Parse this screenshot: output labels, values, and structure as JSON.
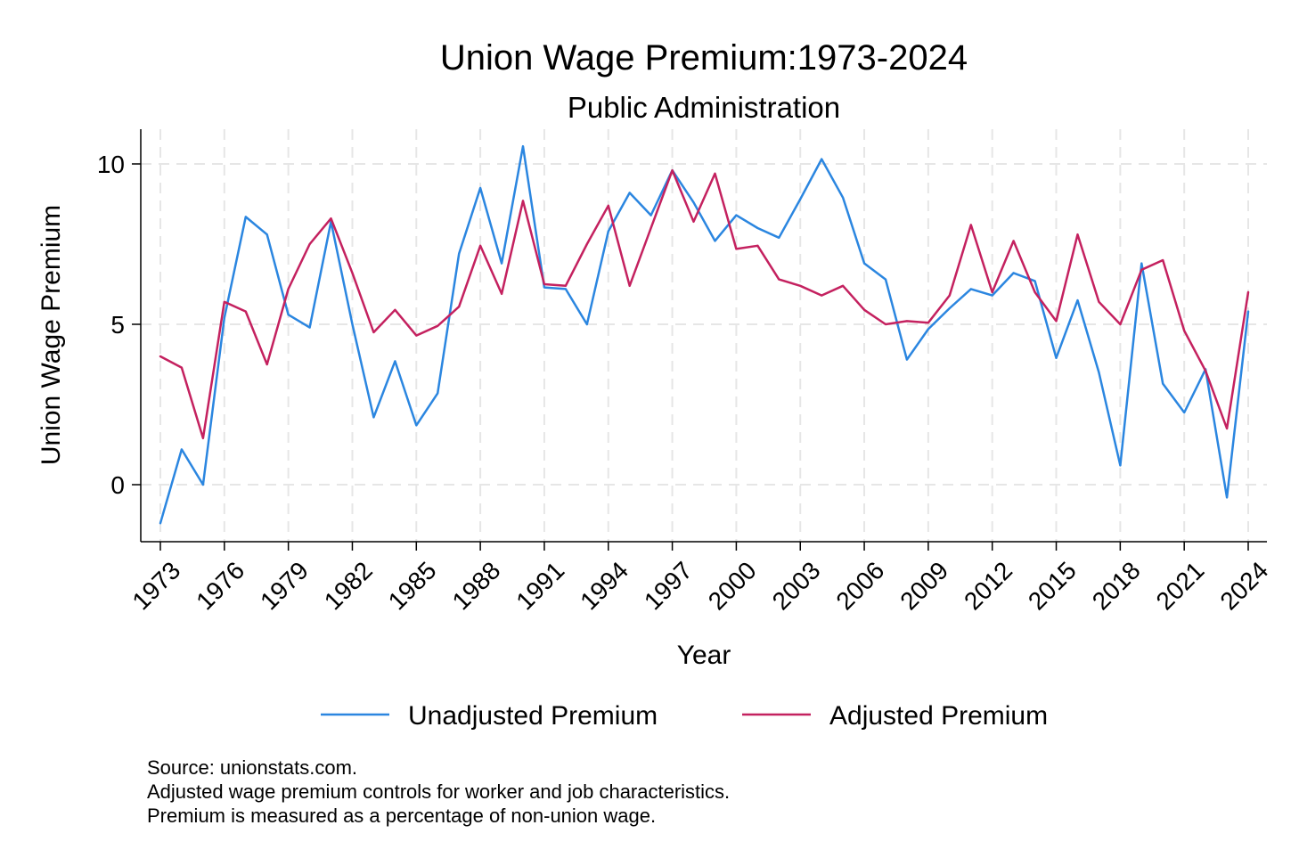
{
  "chart_data": {
    "type": "line",
    "title": "Union Wage Premium:1973-2024",
    "subtitle": "Public Administration",
    "xlabel": "Year",
    "ylabel": "Union Wage Premium",
    "xlim": [
      1973,
      2024
    ],
    "ylim": [
      -1.8,
      11.2
    ],
    "x_ticks": [
      1973,
      1976,
      1979,
      1982,
      1985,
      1988,
      1991,
      1994,
      1997,
      2000,
      2003,
      2006,
      2009,
      2012,
      2015,
      2018,
      2021,
      2024
    ],
    "y_ticks": [
      0,
      5,
      10
    ],
    "grid": true,
    "legend_position": "bottom",
    "x": [
      1973,
      1974,
      1975,
      1976,
      1977,
      1978,
      1979,
      1980,
      1981,
      1982,
      1983,
      1984,
      1985,
      1986,
      1987,
      1988,
      1989,
      1990,
      1991,
      1992,
      1993,
      1994,
      1995,
      1996,
      1997,
      1998,
      1999,
      2000,
      2001,
      2002,
      2003,
      2004,
      2005,
      2006,
      2007,
      2008,
      2009,
      2010,
      2011,
      2012,
      2013,
      2014,
      2015,
      2016,
      2017,
      2018,
      2019,
      2020,
      2021,
      2022,
      2023,
      2024
    ],
    "series": [
      {
        "name": "Unadjusted Premium",
        "color": "#2b86e0",
        "values": [
          -1.2,
          1.1,
          0.0,
          5.2,
          8.35,
          7.8,
          5.3,
          4.9,
          8.2,
          5.0,
          2.1,
          3.85,
          1.85,
          2.85,
          7.2,
          9.25,
          6.9,
          10.55,
          6.15,
          6.1,
          5.0,
          7.9,
          9.1,
          8.4,
          9.8,
          8.8,
          7.6,
          8.4,
          8.0,
          7.7,
          8.9,
          10.15,
          8.95,
          6.9,
          6.4,
          3.9,
          4.85,
          5.5,
          6.1,
          5.9,
          6.6,
          6.35,
          3.95,
          5.75,
          3.5,
          0.6,
          6.9,
          3.15,
          2.25,
          3.6,
          -0.4,
          5.4
        ]
      },
      {
        "name": "Adjusted Premium",
        "color": "#c4215f",
        "values": [
          4.0,
          3.65,
          1.45,
          5.7,
          5.4,
          3.75,
          6.1,
          7.5,
          8.3,
          6.6,
          4.75,
          5.45,
          4.65,
          4.95,
          5.55,
          7.45,
          5.95,
          8.85,
          6.25,
          6.2,
          7.5,
          8.7,
          6.2,
          8.0,
          9.8,
          8.2,
          9.7,
          7.35,
          7.45,
          6.4,
          6.2,
          5.9,
          6.2,
          5.45,
          5.0,
          5.1,
          5.05,
          5.9,
          8.1,
          6.0,
          7.6,
          6.0,
          5.1,
          7.8,
          5.7,
          5.0,
          6.7,
          7.0,
          4.8,
          3.55,
          1.75,
          6.0
        ]
      }
    ],
    "notes": [
      "Source: unionstats.com.",
      "Adjusted wage premium controls for worker and job characteristics.",
      "Premium is measured as a percentage of non-union wage."
    ]
  }
}
